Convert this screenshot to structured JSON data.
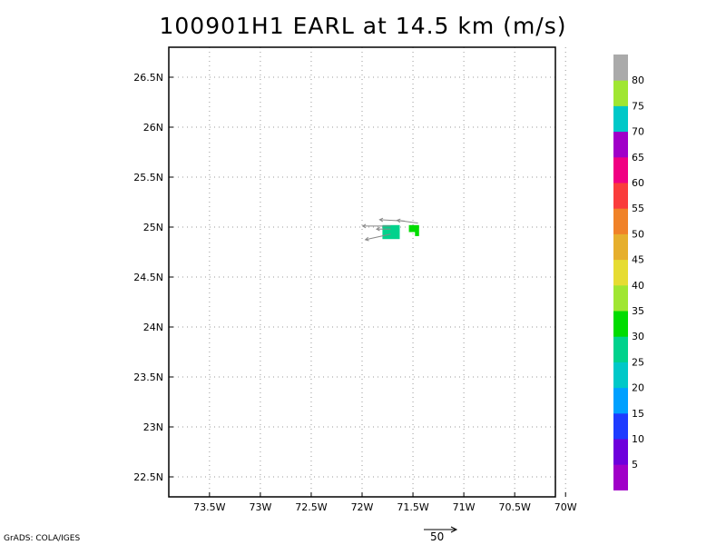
{
  "title": "100901H1 EARL at 14.5 km (m/s)",
  "credit": "GrADS: COLA/IGES",
  "reference_vector": {
    "label": "50",
    "magnitude_ms": 50
  },
  "map": {
    "lat_range": [
      22.3,
      26.8
    ],
    "lon_range": [
      -73.9,
      -70.1
    ],
    "lat_ticks": [
      {
        "value": 22.5,
        "label": "22.5N"
      },
      {
        "value": 23.0,
        "label": "23N"
      },
      {
        "value": 23.5,
        "label": "23.5N"
      },
      {
        "value": 24.0,
        "label": "24N"
      },
      {
        "value": 24.5,
        "label": "24.5N"
      },
      {
        "value": 25.0,
        "label": "25N"
      },
      {
        "value": 25.5,
        "label": "25.5N"
      },
      {
        "value": 26.0,
        "label": "26N"
      },
      {
        "value": 26.5,
        "label": "26.5N"
      }
    ],
    "lon_ticks": [
      {
        "value": -73.5,
        "label": "73.5W"
      },
      {
        "value": -73.0,
        "label": "73W"
      },
      {
        "value": -72.5,
        "label": "72.5W"
      },
      {
        "value": -72.0,
        "label": "72W"
      },
      {
        "value": -71.5,
        "label": "71.5W"
      },
      {
        "value": -71.0,
        "label": "71W"
      },
      {
        "value": -70.5,
        "label": "70.5W"
      },
      {
        "value": -70.0,
        "label": "70W"
      }
    ],
    "grid": true
  },
  "wind_cells": [
    {
      "lon0": -71.8,
      "lon1": -71.63,
      "lat0": 24.88,
      "lat1": 25.02,
      "speed_ms": 28
    },
    {
      "lon0": -71.54,
      "lon1": -71.44,
      "lat0": 24.95,
      "lat1": 25.02,
      "speed_ms": 33
    },
    {
      "lon0": -71.48,
      "lon1": -71.44,
      "lat0": 24.91,
      "lat1": 24.95,
      "speed_ms": 33
    }
  ],
  "wind_vectors": [
    {
      "lon": -71.58,
      "lat": 25.06,
      "u": -18,
      "v": 1
    },
    {
      "lon": -71.45,
      "lat": 25.04,
      "u": -15,
      "v": 2
    },
    {
      "lon": -71.72,
      "lat": 25.01,
      "u": -20,
      "v": 0
    },
    {
      "lon": -71.72,
      "lat": 24.93,
      "u": -18,
      "v": -4
    },
    {
      "lon": -71.72,
      "lat": 24.98,
      "u": -10,
      "v": 0
    }
  ],
  "colorbar": {
    "labels": [
      "5",
      "10",
      "15",
      "20",
      "25",
      "30",
      "35",
      "40",
      "45",
      "50",
      "55",
      "60",
      "65",
      "70",
      "75",
      "80"
    ],
    "colors": [
      "#a000c8",
      "#6e00dc",
      "#1e3cff",
      "#00a0ff",
      "#00c8c8",
      "#00d28c",
      "#00dc00",
      "#a0e632",
      "#e6dc32",
      "#e6af2d",
      "#f08228",
      "#fa3c3c",
      "#f00082",
      "#a000c8",
      "#00c8c8",
      "#a0e632",
      "#aaaaaa"
    ]
  }
}
